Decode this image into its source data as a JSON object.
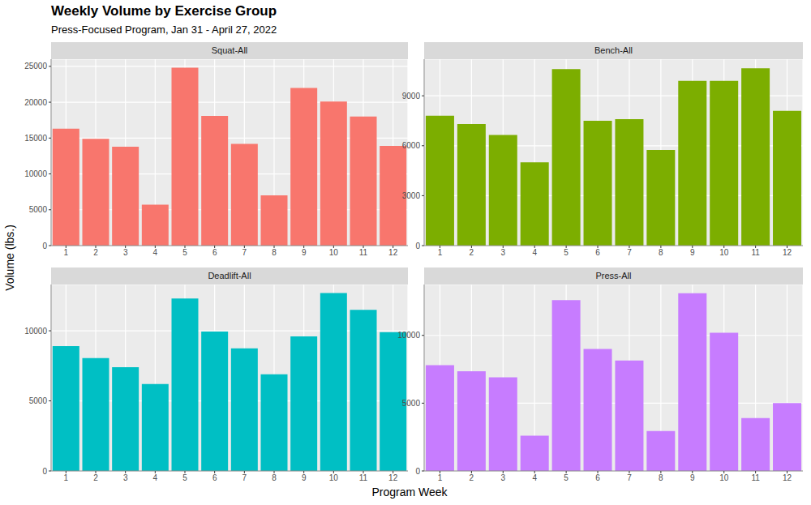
{
  "title": "Weekly Volume by Exercise Group",
  "subtitle": "Press-Focused Program, Jan 31 - April 27, 2022",
  "x_label": "Program Week",
  "y_label": "Volume (lbs.)",
  "chart_data": [
    {
      "type": "bar",
      "title": "Squat-All",
      "categories": [
        "1",
        "2",
        "3",
        "4",
        "5",
        "6",
        "7",
        "8",
        "9",
        "10",
        "11",
        "12"
      ],
      "values": [
        16300,
        14900,
        13800,
        5700,
        24800,
        18100,
        14200,
        7000,
        22000,
        20100,
        18000,
        13900
      ],
      "color": "#F8766D",
      "ylim": [
        0,
        26000
      ],
      "yticks": [
        0,
        5000,
        10000,
        15000,
        20000,
        25000
      ],
      "grid": true
    },
    {
      "type": "bar",
      "title": "Bench-All",
      "categories": [
        "1",
        "2",
        "3",
        "4",
        "5",
        "6",
        "7",
        "8",
        "9",
        "10",
        "11",
        "12"
      ],
      "values": [
        7800,
        7300,
        6650,
        5000,
        10600,
        7500,
        7600,
        5750,
        9900,
        9900,
        10650,
        8100
      ],
      "color": "#7CAE00",
      "ylim": [
        0,
        11200
      ],
      "yticks": [
        0,
        3000,
        6000,
        9000
      ],
      "grid": true
    },
    {
      "type": "bar",
      "title": "Deadlift-All",
      "categories": [
        "1",
        "2",
        "3",
        "4",
        "5",
        "6",
        "7",
        "8",
        "9",
        "10",
        "11",
        "12"
      ],
      "values": [
        8900,
        8050,
        7400,
        6200,
        12300,
        9950,
        8750,
        6900,
        9600,
        12700,
        11500,
        9900
      ],
      "color": "#00BFC4",
      "ylim": [
        0,
        13300
      ],
      "yticks": [
        0,
        5000,
        10000
      ],
      "grid": true
    },
    {
      "type": "bar",
      "title": "Press-All",
      "categories": [
        "1",
        "2",
        "3",
        "4",
        "5",
        "6",
        "7",
        "8",
        "9",
        "10",
        "11",
        "12"
      ],
      "values": [
        7800,
        7350,
        6900,
        2600,
        12600,
        9000,
        8150,
        2950,
        13100,
        10200,
        3900,
        5000
      ],
      "color": "#C77CFF",
      "ylim": [
        0,
        13750
      ],
      "yticks": [
        0,
        5000,
        10000
      ],
      "grid": true
    }
  ]
}
